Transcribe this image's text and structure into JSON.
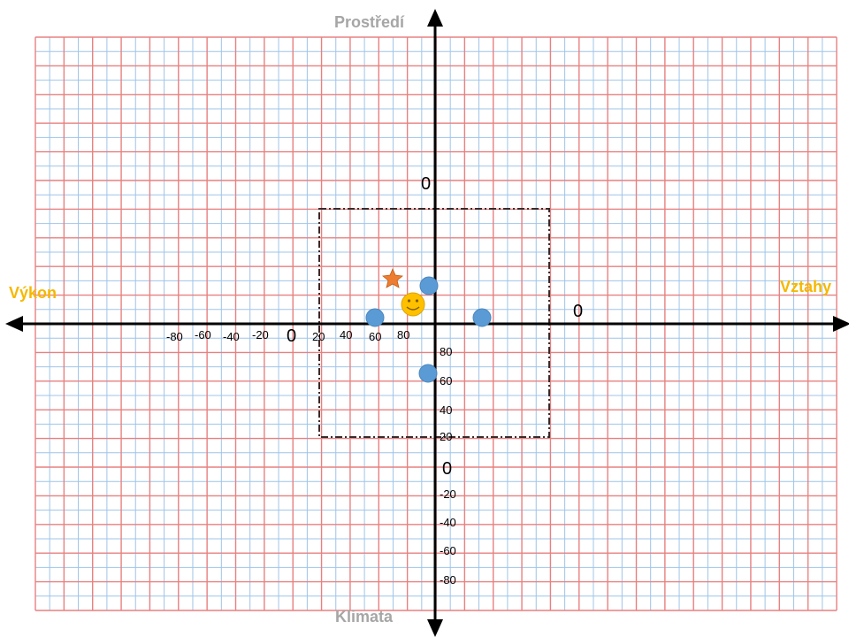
{
  "axes": {
    "top_label": "Prostředí",
    "bottom_label": "Klimata",
    "left_label": "Výkon",
    "right_label": "Vztahy",
    "colors": {
      "top_label": "#a6a6a6",
      "bottom_label": "#a6a6a6",
      "left_label": "#f5b800",
      "right_label": "#f5b800",
      "grid_major": "#e88080",
      "grid_minor": "#9fc4e8",
      "marker_blue": "#5b9bd5",
      "marker_star": "#ed7d31",
      "marker_smiley": "#ffc000"
    }
  },
  "horizontal_ticks": [
    "-80",
    "-60",
    "-40",
    "-20",
    "0",
    "20",
    "40",
    "60",
    "80"
  ],
  "vertical_ticks_upper": [
    "80",
    "60",
    "40",
    "20"
  ],
  "vertical_ticks_lower": [
    "-20",
    "-40",
    "-60",
    "-80"
  ],
  "zero_labels": {
    "center_h": "0",
    "center_v": "0",
    "top": "0",
    "right": "0"
  },
  "markers": [
    {
      "name": "marker-dot-upper",
      "type": "dot"
    },
    {
      "name": "marker-dot-left",
      "type": "dot"
    },
    {
      "name": "marker-dot-right",
      "type": "dot"
    },
    {
      "name": "marker-dot-lower",
      "type": "dot"
    },
    {
      "name": "star-marker",
      "type": "star"
    },
    {
      "name": "smiley-marker",
      "type": "smiley"
    }
  ]
}
